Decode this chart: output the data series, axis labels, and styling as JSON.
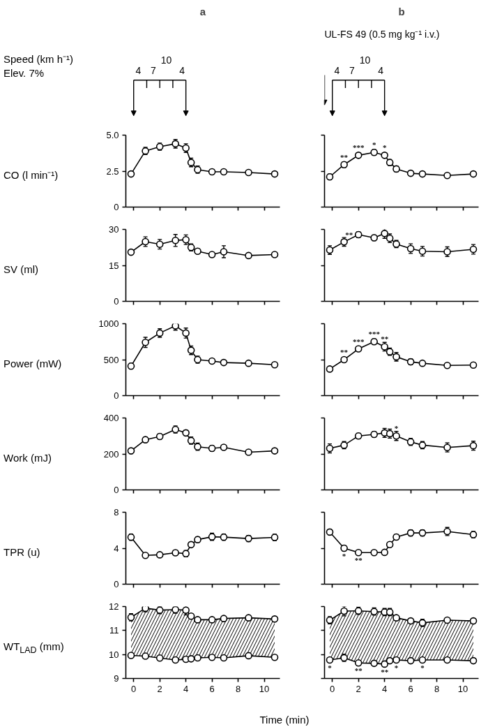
{
  "chart_data": [
    {
      "type": "line",
      "title": "a",
      "ylabel": "CO (l min⁻¹)",
      "annotations": [
        "Speed (km h⁻¹)",
        "Elev. 7%",
        "4",
        "7",
        "10",
        "4"
      ],
      "x": [
        -0.2,
        0.9,
        2,
        3.2,
        4,
        4.4,
        4.9,
        6,
        6.9,
        8.8,
        10.8
      ],
      "xlim": [
        -0.6,
        11.2
      ],
      "xticks": [
        0,
        2,
        4,
        6,
        8,
        10
      ],
      "ylim": [
        0,
        5
      ],
      "yticks": [
        0,
        2.5,
        {
          "value": 5,
          "label": "5.0"
        }
      ],
      "tick_labels": "y",
      "marker": "circle",
      "series": [
        {
          "color": "#000000",
          "values": [
            2.3,
            3.9,
            4.2,
            4.4,
            4.1,
            3.1,
            2.6,
            2.45,
            2.45,
            2.4,
            2.3
          ],
          "errors": [
            0.15,
            0.25,
            0.25,
            0.3,
            0.3,
            0.3,
            0.25,
            0.15,
            0.15,
            0.15,
            0.15
          ]
        }
      ]
    },
    {
      "type": "line",
      "title": "b",
      "subtitle": "UL-FS 49 (0.5 mg kg⁻¹ i.v.)",
      "annotations": [
        "4",
        "7",
        "10",
        "4",
        {
          "text": "**",
          "x": 0.9,
          "y": 2.95
        },
        {
          "text": "***",
          "x": 2,
          "y": 3.6
        },
        {
          "text": "*",
          "x": 3.2,
          "y": 3.8
        },
        {
          "text": "*",
          "x": 4,
          "y": 3.6
        }
      ],
      "x": [
        -0.2,
        0.9,
        2,
        3.2,
        4,
        4.4,
        4.9,
        6,
        6.9,
        8.8,
        10.8
      ],
      "xlim": [
        -0.6,
        11.2
      ],
      "xticks": [
        0,
        2,
        4,
        6,
        8,
        10
      ],
      "ylim": [
        0,
        5
      ],
      "yticks": [
        0,
        2.5,
        5
      ],
      "tick_labels": false,
      "marker": "circle",
      "series": [
        {
          "color": "#000000",
          "values": [
            2.1,
            2.95,
            3.6,
            3.8,
            3.6,
            3.1,
            2.65,
            2.35,
            2.3,
            2.2,
            2.3
          ],
          "errors": [
            0.2,
            0.2,
            0.15,
            0.2,
            0.15,
            0.2,
            0.2,
            0.15,
            0.1,
            0.15,
            0.15
          ]
        }
      ]
    },
    {
      "type": "line",
      "ylabel": "SV (ml)",
      "x": [
        -0.2,
        0.9,
        2,
        3.2,
        4,
        4.4,
        4.9,
        6,
        6.9,
        8.8,
        10.8
      ],
      "xlim": [
        -0.6,
        11.2
      ],
      "xticks": [
        0,
        2,
        4,
        6,
        8,
        10
      ],
      "ylim": [
        0,
        30
      ],
      "yticks": [
        0,
        15,
        30
      ],
      "tick_labels": "y",
      "marker": "circle",
      "series": [
        {
          "color": "#000000",
          "values": [
            20.5,
            24.9,
            23.8,
            25.4,
            25.7,
            22.5,
            20.9,
            19.5,
            20.7,
            19.1,
            19.5
          ],
          "errors": [
            1,
            2,
            2,
            2.5,
            2,
            1.5,
            1,
            1,
            2.5,
            1,
            1
          ]
        }
      ]
    },
    {
      "type": "line",
      "annotations": [
        {
          "text": "**",
          "x": 2,
          "y": 27.8
        }
      ],
      "x": [
        -0.2,
        0.9,
        2,
        3.2,
        4,
        4.4,
        4.9,
        6,
        6.9,
        8.8,
        10.8
      ],
      "xlim": [
        -0.6,
        11.2
      ],
      "xticks": [
        0,
        2,
        4,
        6,
        8,
        10
      ],
      "ylim": [
        0,
        30
      ],
      "yticks": [
        0,
        15,
        30
      ],
      "tick_labels": false,
      "marker": "circle",
      "series": [
        {
          "color": "#000000",
          "values": [
            21.4,
            24.8,
            27.8,
            26.5,
            28.3,
            26.3,
            23.9,
            22.0,
            20.9,
            20.7,
            21.7
          ],
          "errors": [
            1.8,
            1.8,
            1.2,
            1.2,
            2,
            1.8,
            1.5,
            2,
            2,
            2,
            2
          ]
        }
      ]
    },
    {
      "type": "line",
      "ylabel": "Power (mW)",
      "x": [
        -0.2,
        0.9,
        2,
        3.2,
        4,
        4.4,
        4.9,
        6,
        6.9,
        8.8,
        10.8
      ],
      "xlim": [
        -0.6,
        11.2
      ],
      "xticks": [
        0,
        2,
        4,
        6,
        8,
        10
      ],
      "ylim": [
        0,
        1000
      ],
      "yticks": [
        0,
        500,
        1000
      ],
      "tick_labels": "y",
      "marker": "circle",
      "series": [
        {
          "color": "#000000",
          "values": [
            410,
            740,
            870,
            970,
            870,
            630,
            500,
            480,
            460,
            450,
            430
          ],
          "errors": [
            40,
            70,
            60,
            60,
            70,
            60,
            50,
            30,
            30,
            30,
            30
          ]
        }
      ]
    },
    {
      "type": "line",
      "annotations": [
        {
          "text": "**",
          "x": 0.9,
          "y": 500
        },
        {
          "text": "***",
          "x": 2,
          "y": 650
        },
        {
          "text": "***",
          "x": 3.2,
          "y": 750
        },
        {
          "text": "**",
          "x": 4,
          "y": 680
        }
      ],
      "x": [
        -0.2,
        0.9,
        2,
        3.2,
        4,
        4.4,
        4.9,
        6,
        6.9,
        8.8,
        10.8
      ],
      "xlim": [
        -0.6,
        11.2
      ],
      "xticks": [
        0,
        2,
        4,
        6,
        8,
        10
      ],
      "ylim": [
        0,
        1000
      ],
      "yticks": [
        0,
        500,
        1000
      ],
      "tick_labels": false,
      "marker": "circle",
      "series": [
        {
          "color": "#000000",
          "values": [
            370,
            500,
            650,
            750,
            680,
            610,
            540,
            470,
            450,
            420,
            425
          ],
          "errors": [
            30,
            30,
            30,
            40,
            60,
            50,
            60,
            40,
            30,
            30,
            30
          ]
        }
      ]
    },
    {
      "type": "line",
      "ylabel": "Work (mJ)",
      "x": [
        -0.2,
        0.9,
        2,
        3.2,
        4,
        4.4,
        4.9,
        6,
        6.9,
        8.8,
        10.8
      ],
      "xlim": [
        -0.6,
        11.2
      ],
      "xticks": [
        0,
        2,
        4,
        6,
        8,
        10
      ],
      "ylim": [
        0,
        400
      ],
      "yticks": [
        0,
        200,
        400
      ],
      "tick_labels": "y",
      "marker": "circle",
      "series": [
        {
          "color": "#000000",
          "values": [
            217,
            279,
            297,
            336,
            317,
            274,
            240,
            231,
            237,
            210,
            217
          ],
          "errors": [
            15,
            15,
            15,
            20,
            15,
            20,
            20,
            15,
            10,
            10,
            10
          ]
        }
      ]
    },
    {
      "type": "line",
      "annotations": [
        {
          "text": "*",
          "x": 4.9,
          "y": 300
        }
      ],
      "x": [
        -0.2,
        0.9,
        2,
        3.2,
        4,
        4.4,
        4.9,
        6,
        6.9,
        8.8,
        10.8
      ],
      "xlim": [
        -0.6,
        11.2
      ],
      "xticks": [
        0,
        2,
        4,
        6,
        8,
        10
      ],
      "ylim": [
        0,
        400
      ],
      "yticks": [
        0,
        200,
        400
      ],
      "tick_labels": false,
      "marker": "circle",
      "series": [
        {
          "color": "#000000",
          "values": [
            231,
            249,
            300,
            309,
            317,
            313,
            300,
            267,
            249,
            236,
            246
          ],
          "errors": [
            25,
            20,
            15,
            15,
            25,
            25,
            25,
            20,
            20,
            25,
            25
          ]
        }
      ]
    },
    {
      "type": "line",
      "ylabel": "TPR (u)",
      "x": [
        -0.2,
        0.9,
        2,
        3.2,
        4,
        4.4,
        4.9,
        6,
        6.9,
        8.8,
        10.8
      ],
      "xlim": [
        -0.6,
        11.2
      ],
      "xticks": [
        0,
        2,
        4,
        6,
        8,
        10
      ],
      "ylim": [
        0,
        8
      ],
      "yticks": [
        0,
        4,
        8
      ],
      "tick_labels": "y",
      "marker": "circle",
      "series": [
        {
          "color": "#000000",
          "values": [
            5.23,
            3.2,
            3.27,
            3.5,
            3.4,
            4.4,
            4.96,
            5.27,
            5.23,
            5.08,
            5.2
          ],
          "errors": [
            0.35,
            0.15,
            0.15,
            0.3,
            0.35,
            0.15,
            0.3,
            0.4,
            0.35,
            0.35,
            0.35
          ]
        }
      ]
    },
    {
      "type": "line",
      "annotations": [
        {
          "text": "*",
          "x": 0.9,
          "y": 4.0
        },
        {
          "text": "**",
          "x": 2,
          "y": 3.52
        }
      ],
      "x": [
        -0.2,
        0.9,
        2,
        3.2,
        4,
        4.4,
        4.9,
        6,
        6.9,
        8.8,
        10.8
      ],
      "xlim": [
        -0.6,
        11.2
      ],
      "xticks": [
        0,
        2,
        4,
        6,
        8,
        10
      ],
      "ylim": [
        0,
        8
      ],
      "yticks": [
        0,
        4,
        8
      ],
      "tick_labels": false,
      "marker": "circle",
      "series": [
        {
          "color": "#000000",
          "values": [
            5.8,
            4.0,
            3.52,
            3.52,
            3.54,
            4.41,
            5.24,
            5.7,
            5.7,
            5.86,
            5.51
          ],
          "errors": [
            0.3,
            0.3,
            0.15,
            0.15,
            0.15,
            0.2,
            0.3,
            0.35,
            0.35,
            0.45,
            0.35
          ]
        }
      ]
    },
    {
      "type": "line",
      "ylabel": "WT$_{LAD}$ (mm)",
      "xlabel": "Time (min)",
      "x": [
        -0.2,
        0.9,
        2,
        3.2,
        4,
        4.4,
        4.9,
        6,
        6.9,
        8.8,
        10.8
      ],
      "xlim": [
        -0.6,
        11.2
      ],
      "xticks": [
        0,
        2,
        4,
        6,
        8,
        10
      ],
      "ylim": [
        9,
        12
      ],
      "yticks": [
        9,
        10,
        11,
        12
      ],
      "marker": "circle",
      "series": [
        {
          "color": "#000000",
          "values": [
            11.55,
            11.93,
            11.85,
            11.87,
            11.85,
            11.6,
            11.45,
            11.45,
            11.5,
            11.53,
            11.48
          ],
          "lower": [
            9.96,
            9.93,
            9.85,
            9.77,
            9.8,
            9.82,
            9.86,
            9.88,
            9.86,
            9.95,
            9.88
          ],
          "upper": [
            11.55,
            11.93,
            11.85,
            11.87,
            11.85,
            11.6,
            11.45,
            11.45,
            11.5,
            11.53,
            11.48
          ],
          "errors": [
            0.15,
            0.15,
            0.15,
            0.15,
            0.2,
            0.05,
            0.05,
            0.05,
            0.05,
            0.1,
            0.05
          ]
        },
        {
          "color": "#000000",
          "values": [
            9.96,
            9.93,
            9.85,
            9.77,
            9.8,
            9.82,
            9.86,
            9.88,
            9.86,
            9.95,
            9.88
          ],
          "errors": [
            0.05,
            0.05,
            0.05,
            0.05,
            0.05,
            0.05,
            0.05,
            0.05,
            0.05,
            0.05,
            0.05
          ]
        }
      ]
    },
    {
      "type": "line",
      "annotations": [
        {
          "text": "*",
          "x": -0.2,
          "y": 9.77
        },
        {
          "text": "**",
          "x": 2,
          "y": 9.65
        },
        {
          "text": "**",
          "x": 4,
          "y": 9.6
        },
        {
          "text": "*",
          "x": 4.9,
          "y": 9.77
        },
        {
          "text": "*",
          "x": 6.9,
          "y": 9.77
        }
      ],
      "x": [
        -0.2,
        0.9,
        2,
        3.2,
        4,
        4.4,
        4.9,
        6,
        6.9,
        8.8,
        10.8
      ],
      "xlim": [
        -0.6,
        11.2
      ],
      "xticks": [
        0,
        2,
        4,
        6,
        8,
        10
      ],
      "ylim": [
        9,
        12
      ],
      "yticks": [
        9,
        10,
        11,
        12
      ],
      "tick_labels": "x",
      "marker": "circle",
      "series": [
        {
          "color": "#000000",
          "values": [
            11.43,
            11.81,
            11.82,
            11.79,
            11.77,
            11.77,
            11.53,
            11.4,
            11.32,
            11.43,
            11.4
          ],
          "lower": [
            9.77,
            9.86,
            9.65,
            9.63,
            9.6,
            9.74,
            9.77,
            9.74,
            9.77,
            9.77,
            9.74
          ],
          "upper": [
            11.43,
            11.81,
            11.82,
            11.79,
            11.77,
            11.77,
            11.53,
            11.4,
            11.32,
            11.43,
            11.4
          ],
          "errors": [
            0.15,
            0.2,
            0.15,
            0.15,
            0.15,
            0.15,
            0.05,
            0.1,
            0.15,
            0.1,
            0.1
          ]
        },
        {
          "color": "#000000",
          "values": [
            9.77,
            9.86,
            9.65,
            9.63,
            9.6,
            9.74,
            9.77,
            9.74,
            9.77,
            9.77,
            9.74
          ],
          "errors": [
            0.05,
            0.15,
            0.05,
            0.05,
            0.05,
            0.05,
            0.05,
            0.05,
            0.05,
            0.05,
            0.05
          ]
        }
      ]
    }
  ]
}
